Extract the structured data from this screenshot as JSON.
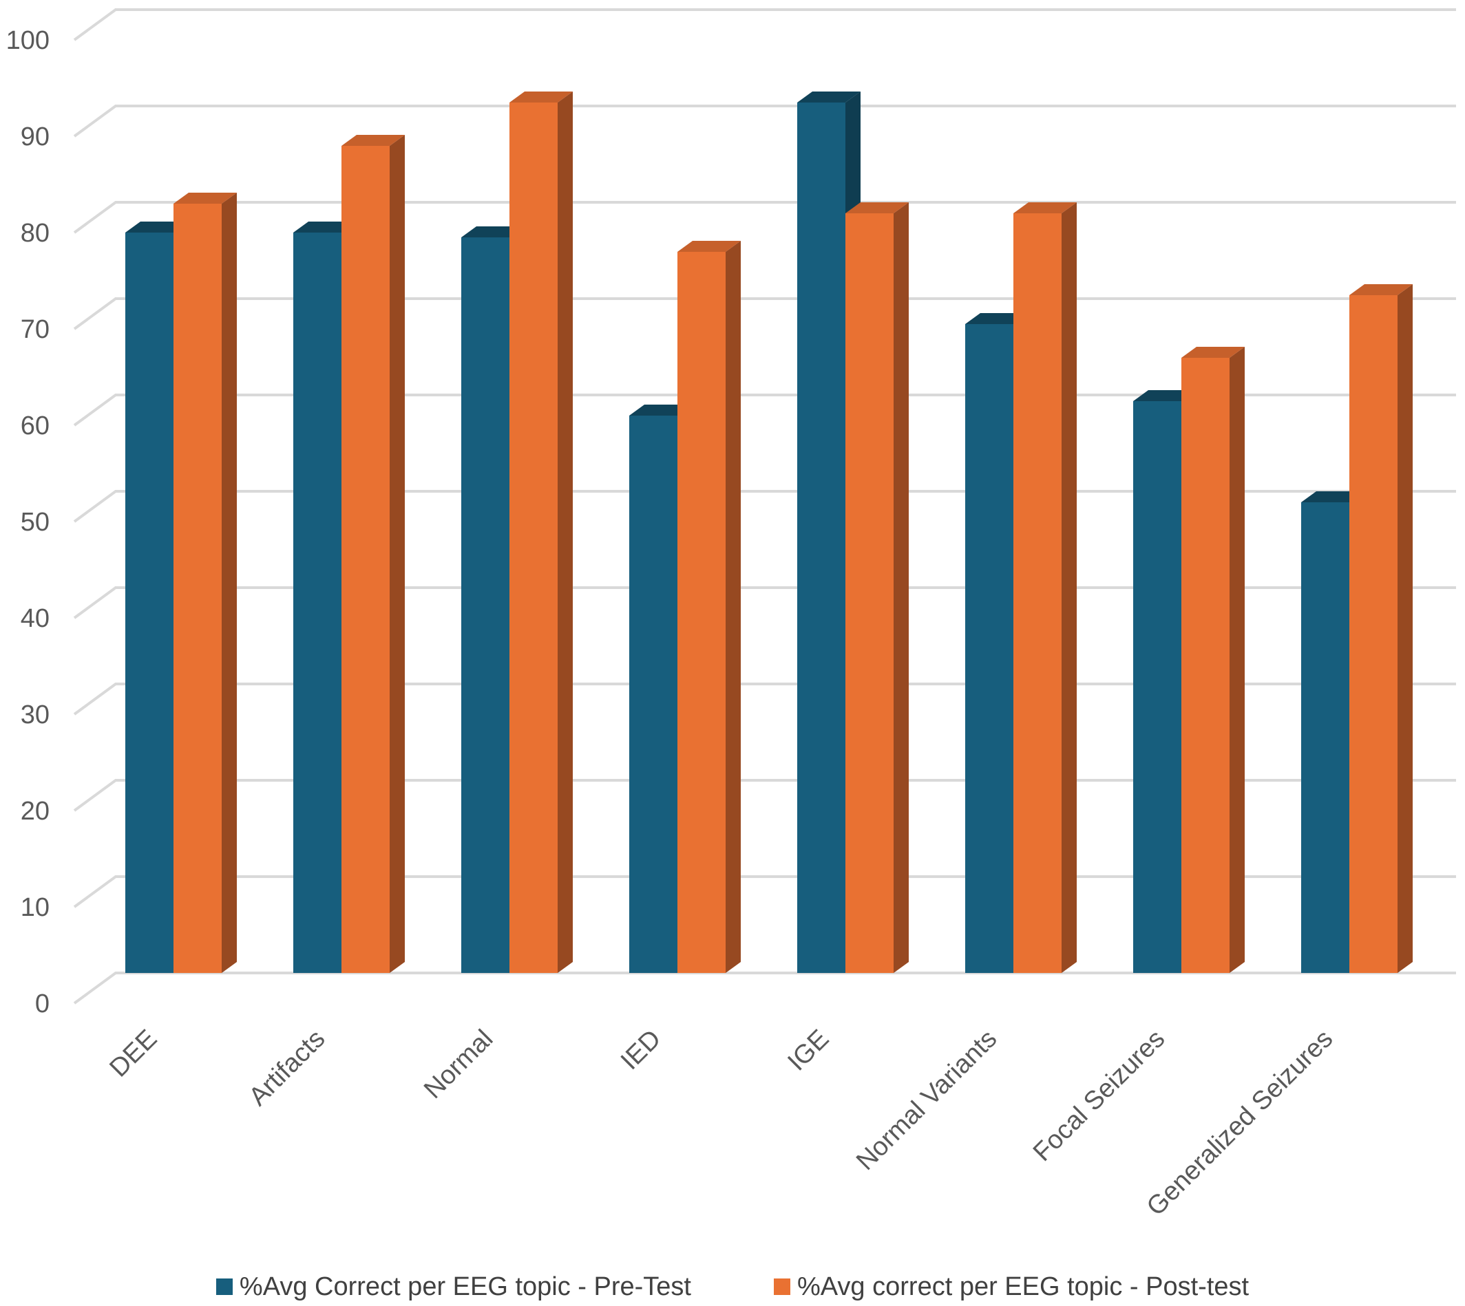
{
  "chart_data": {
    "type": "bar",
    "title": "",
    "xlabel": "",
    "ylabel": "",
    "ylim": [
      0,
      100
    ],
    "yticks": [
      0,
      10,
      20,
      30,
      40,
      50,
      60,
      70,
      80,
      90,
      100
    ],
    "grid": true,
    "legend_position": "bottom",
    "style": "3d-clustered-column",
    "categories": [
      "DEE",
      "Artifacts",
      "Normal",
      "IED",
      "IGE",
      "Normal Variants",
      "Focal Seizures",
      "Generalized Seizures"
    ],
    "series": [
      {
        "name": "%Avg Correct per EEG topic - Pre-Test",
        "color": "#175E7D",
        "values": [
          80,
          80,
          79.5,
          61,
          93.5,
          70.5,
          62.5,
          52
        ]
      },
      {
        "name": "%Avg correct per EEG topic - Post-test",
        "color": "#E97132",
        "values": [
          83,
          89,
          93.5,
          78,
          82,
          82,
          67,
          73.5
        ]
      }
    ]
  }
}
